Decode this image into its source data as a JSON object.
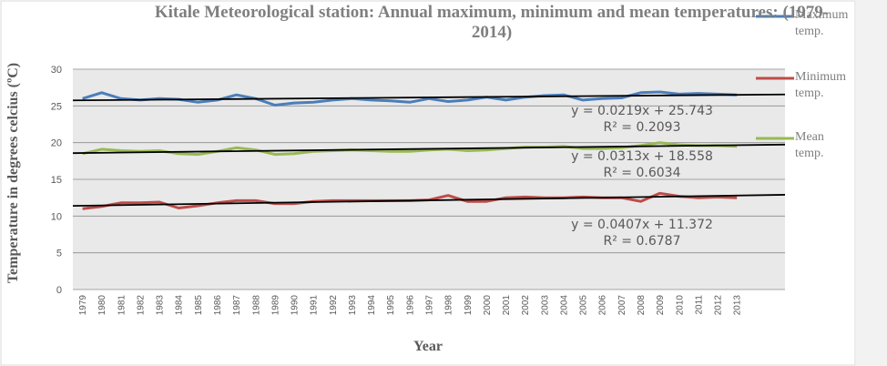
{
  "chart_data": {
    "type": "line",
    "title": "Kitale Meteorological station: Annual maximum, minimum and mean temperatures: (1979-2014)",
    "y_label": "Temperature in degrees celcius (ºC)",
    "x_label": "Year",
    "categories": [
      "1979",
      "1980",
      "1981",
      "1982",
      "1983",
      "1984",
      "1985",
      "1986",
      "1987",
      "1988",
      "1989",
      "1990",
      "1991",
      "1992",
      "1993",
      "1994",
      "1995",
      "1996",
      "1997",
      "1998",
      "1999",
      "2000",
      "2001",
      "2002",
      "2003",
      "2004",
      "2005",
      "2006",
      "2007",
      "2008",
      "2009",
      "2010",
      "2011",
      "2012",
      "2013",
      null,
      null
    ],
    "ylim": [
      0,
      30
    ],
    "yticks": [
      0,
      5,
      10,
      15,
      20,
      25,
      30
    ],
    "grid": true,
    "legend": "right",
    "series": [
      {
        "name": "Maximum temp.",
        "color": "#4a7ebb",
        "values": [
          26.0,
          26.8,
          26.0,
          25.8,
          26.0,
          25.9,
          25.5,
          25.8,
          26.5,
          26.0,
          25.1,
          25.4,
          25.5,
          25.8,
          26.0,
          25.8,
          25.7,
          25.5,
          26.0,
          25.6,
          25.8,
          26.2,
          25.8,
          26.2,
          26.4,
          26.5,
          25.8,
          26.0,
          26.1,
          26.8,
          26.9,
          26.6,
          26.7,
          26.6,
          26.5,
          null,
          null
        ],
        "trendline": {
          "equation": "y = 0.0219x + 25.743",
          "slope": 0.0219,
          "intercept": 25.743,
          "r2": "R² = 0.2093"
        }
      },
      {
        "name": "Minimum temp.",
        "color": "#be4b48",
        "values": [
          11.0,
          11.3,
          11.8,
          11.8,
          11.9,
          11.1,
          11.4,
          11.8,
          12.1,
          12.1,
          11.7,
          11.7,
          12.0,
          12.1,
          12.1,
          12.1,
          12.1,
          12.1,
          12.2,
          12.8,
          12.0,
          12.0,
          12.5,
          12.6,
          12.5,
          12.5,
          12.6,
          12.5,
          12.5,
          12.0,
          13.1,
          12.7,
          12.5,
          12.6,
          12.5,
          null,
          null
        ],
        "trendline": {
          "equation": "y = 0.0407x + 11.372",
          "slope": 0.0407,
          "intercept": 11.372,
          "r2": "R² = 0.6787"
        }
      },
      {
        "name": "Mean temp.",
        "color": "#98b954",
        "values": [
          18.5,
          19.1,
          18.9,
          18.8,
          18.9,
          18.5,
          18.4,
          18.8,
          19.3,
          19.0,
          18.4,
          18.5,
          18.8,
          18.9,
          19.0,
          18.9,
          18.8,
          18.8,
          19.0,
          19.1,
          18.9,
          19.0,
          19.2,
          19.4,
          19.4,
          19.5,
          19.2,
          19.2,
          19.3,
          19.6,
          20.0,
          19.7,
          19.6,
          19.6,
          19.5,
          null,
          null
        ],
        "trendline": {
          "equation": "y = 0.0313x + 18.558",
          "slope": 0.0313,
          "intercept": 18.558,
          "r2": "R² = 0.6034"
        }
      }
    ]
  }
}
